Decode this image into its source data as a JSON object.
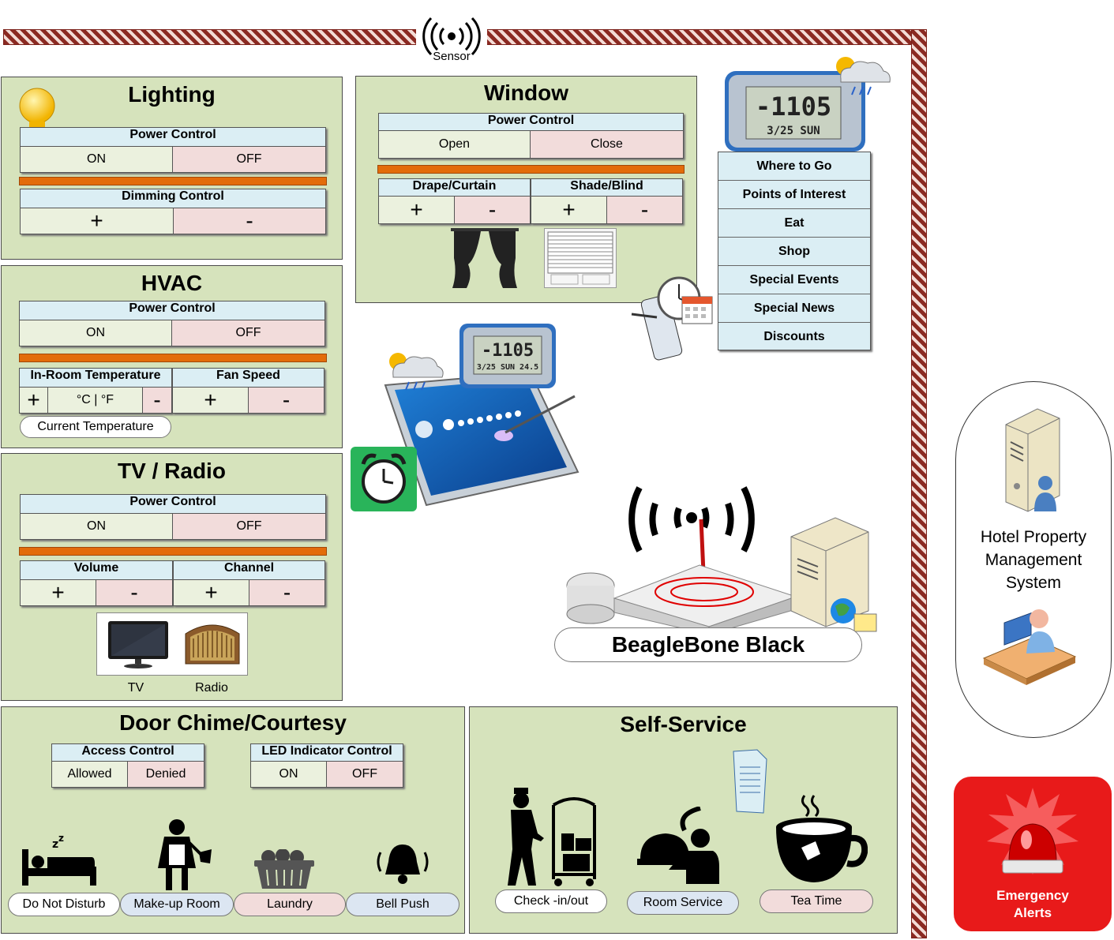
{
  "sensor": {
    "label": "Sensor"
  },
  "lighting": {
    "title": "Lighting",
    "power": {
      "header": "Power Control",
      "on": "ON",
      "off": "OFF"
    },
    "dimming": {
      "header": "Dimming Control",
      "plus": "+",
      "minus": "-"
    }
  },
  "hvac": {
    "title": "HVAC",
    "power": {
      "header": "Power Control",
      "on": "ON",
      "off": "OFF"
    },
    "temperature": {
      "header": "In-Room Temperature",
      "plus": "+",
      "unit": "°C | °F",
      "minus": "-"
    },
    "fan": {
      "header": "Fan Speed",
      "plus": "+",
      "minus": "-"
    },
    "current_temp": "Current Temperature"
  },
  "tv": {
    "title": "TV / Radio",
    "power": {
      "header": "Power Control",
      "on": "ON",
      "off": "OFF"
    },
    "volume": {
      "header": "Volume",
      "plus": "+",
      "minus": "-"
    },
    "channel": {
      "header": "Channel",
      "plus": "+",
      "minus": "-"
    },
    "tv_label": "TV",
    "radio_label": "Radio"
  },
  "window": {
    "title": "Window",
    "power": {
      "header": "Power Control",
      "open": "Open",
      "close": "Close"
    },
    "drape": {
      "header": "Drape/Curtain",
      "plus": "+",
      "minus": "-"
    },
    "shade": {
      "header": "Shade/Blind",
      "plus": "+",
      "minus": "-"
    }
  },
  "clock": {
    "time": "-1105",
    "date": "3/25 SUN",
    "temp": "24.5"
  },
  "menu": {
    "items": [
      "Where to Go",
      "Points of Interest",
      "Eat",
      "Shop",
      "Special Events",
      "Special News",
      "Discounts"
    ]
  },
  "beaglebone": {
    "label": "BeagleBone Black"
  },
  "hotel": {
    "label": "Hotel Property Management System"
  },
  "emergency": {
    "label": "Emergency Alerts"
  },
  "door": {
    "title": "Door Chime/Courtesy",
    "access": {
      "header": "Access Control",
      "allowed": "Allowed",
      "denied": "Denied"
    },
    "led": {
      "header": "LED Indicator Control",
      "on": "ON",
      "off": "OFF"
    },
    "buttons": [
      "Do Not Disturb",
      "Make-up Room",
      "Laundry",
      "Bell Push"
    ]
  },
  "self_service": {
    "title": "Self-Service",
    "buttons": [
      "Check -in/out",
      "Room Service",
      "Tea Time"
    ]
  },
  "colors": {
    "panel": "#d6e3bc",
    "on": "#ebf1de",
    "off": "#f2dcdb",
    "header": "#dbeef4",
    "wall": "#8b2a22",
    "alert": "#e81a1a",
    "bar": "#e36c0a"
  }
}
